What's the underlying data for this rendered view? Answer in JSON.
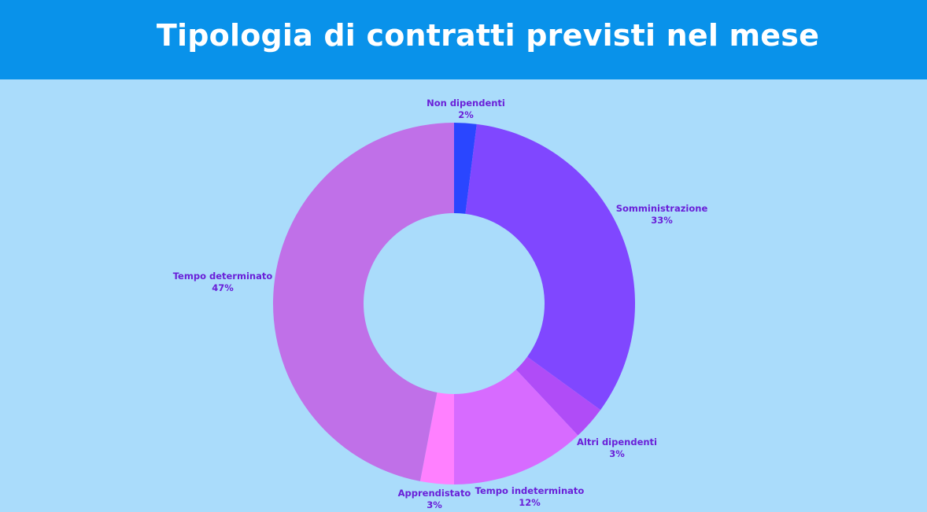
{
  "header": {
    "title": "Tipologia di contratti previsti nel mese"
  },
  "chart_data": {
    "type": "pie",
    "variant": "donut",
    "title": "Tipologia di contratti previsti nel mese",
    "slices": [
      {
        "label": "Non dipendenti",
        "value": 2,
        "display": "2%",
        "color": "#2a46ff"
      },
      {
        "label": "Somministrazione",
        "value": 33,
        "display": "33%",
        "color": "#8047ff"
      },
      {
        "label": "Altri dipendenti",
        "value": 3,
        "display": "3%",
        "color": "#b04cf7"
      },
      {
        "label": "Tempo indeterminato",
        "value": 12,
        "display": "12%",
        "color": "#d76bff"
      },
      {
        "label": "Apprendistato",
        "value": 3,
        "display": "3%",
        "color": "#ff80ff"
      },
      {
        "label": "Tempo determinato",
        "value": 47,
        "display": "47%",
        "color": "#c070e8"
      }
    ],
    "start_angle": "top",
    "direction": "clockwise",
    "label_color": "#6a20d8",
    "legend": "none"
  }
}
